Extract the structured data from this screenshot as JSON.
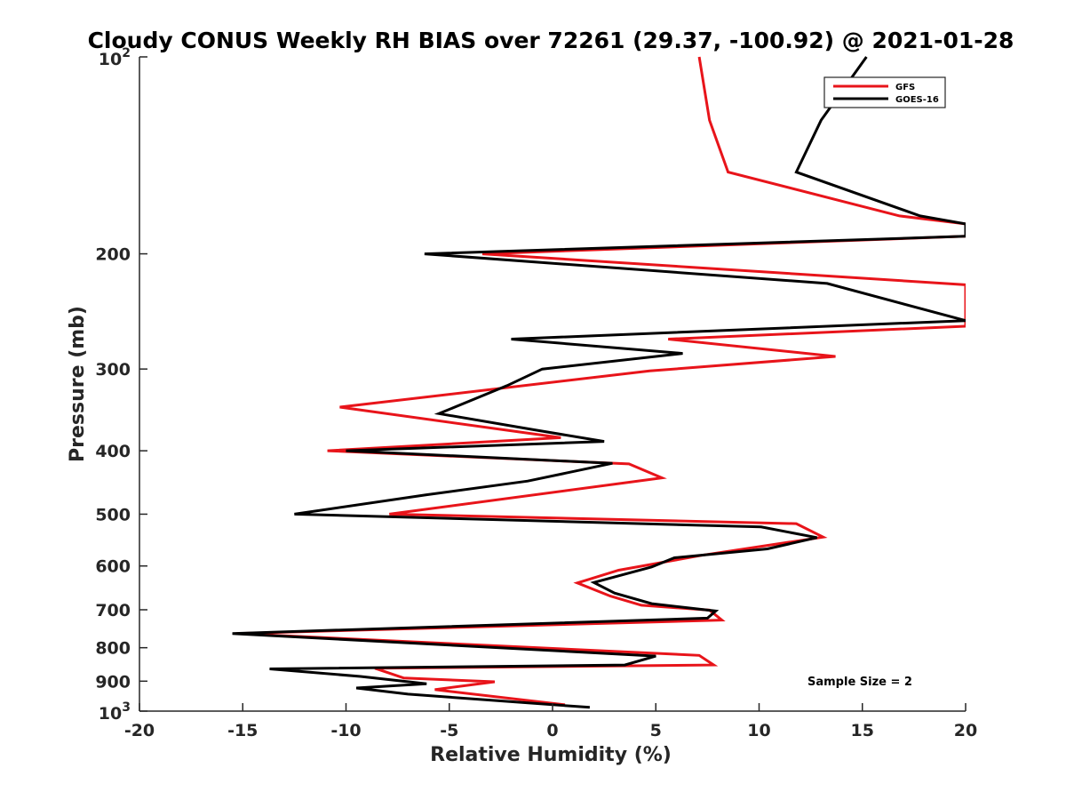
{
  "chart_data": {
    "type": "line",
    "title": "Cloudy CONUS Weekly RH BIAS over 72261 (29.37, -100.92) @ 2021-01-28",
    "xlabel": "Relative Humidity (%)",
    "ylabel": "Pressure (mb)",
    "xlim": [
      -20,
      20
    ],
    "ylim": [
      100,
      1000
    ],
    "y_scale": "log",
    "y_reversed": true,
    "grid": false,
    "legend_position": "top-right",
    "x_ticks": [
      "-20",
      "-15",
      "-10",
      "-5",
      "0",
      "5",
      "10",
      "15",
      "20"
    ],
    "y_ticks": [
      {
        "value": 100,
        "base": "10",
        "exp": "2"
      },
      {
        "value": 200,
        "label": "200"
      },
      {
        "value": 300,
        "label": "300"
      },
      {
        "value": 400,
        "label": "400"
      },
      {
        "value": 500,
        "label": "500"
      },
      {
        "value": 600,
        "label": "600"
      },
      {
        "value": 700,
        "label": "700"
      },
      {
        "value": 800,
        "label": "800"
      },
      {
        "value": 900,
        "label": "900"
      },
      {
        "value": 1000,
        "base": "10",
        "exp": "3"
      }
    ],
    "annotation": "Sample Size = 2",
    "series": [
      {
        "name": "GFS",
        "color": "#e8141a",
        "points": [
          [
            7.1,
            100
          ],
          [
            7.6,
            125
          ],
          [
            8.5,
            150
          ],
          [
            16.8,
            175
          ],
          [
            20.0,
            180
          ],
          [
            20.0,
            188
          ],
          [
            -3.4,
            200
          ],
          [
            20.0,
            223
          ],
          [
            20.0,
            258
          ],
          [
            5.6,
            270
          ],
          [
            13.7,
            287
          ],
          [
            4.7,
            302
          ],
          [
            -10.3,
            343
          ],
          [
            0.4,
            382
          ],
          [
            -10.9,
            400
          ],
          [
            3.7,
            419
          ],
          [
            5.3,
            440
          ],
          [
            -7.9,
            500
          ],
          [
            11.8,
            517
          ],
          [
            13.1,
            542
          ],
          [
            7.2,
            578
          ],
          [
            3.2,
            609
          ],
          [
            1.2,
            637
          ],
          [
            2.8,
            667
          ],
          [
            4.3,
            689
          ],
          [
            7.6,
            701
          ],
          [
            8.2,
            726
          ],
          [
            -15.3,
            761
          ],
          [
            7.1,
            822
          ],
          [
            7.8,
            850
          ],
          [
            -8.6,
            860
          ],
          [
            -7.2,
            890
          ],
          [
            -2.8,
            902
          ],
          [
            -5.7,
            927
          ],
          [
            0.6,
            978
          ]
        ]
      },
      {
        "name": "GOES-16",
        "color": "#000000",
        "points": [
          [
            15.2,
            100
          ],
          [
            13.0,
            125
          ],
          [
            11.8,
            150
          ],
          [
            17.8,
            175
          ],
          [
            20.0,
            180
          ],
          [
            20.0,
            188
          ],
          [
            -6.2,
            200
          ],
          [
            13.3,
            222
          ],
          [
            20.0,
            253
          ],
          [
            -2.0,
            270
          ],
          [
            6.3,
            284
          ],
          [
            -0.5,
            300
          ],
          [
            -2.2,
            318
          ],
          [
            -5.5,
            351
          ],
          [
            -0.8,
            372
          ],
          [
            2.5,
            387
          ],
          [
            -10.0,
            400
          ],
          [
            2.9,
            418
          ],
          [
            -1.2,
            445
          ],
          [
            -6.1,
            467
          ],
          [
            -12.5,
            500
          ],
          [
            10.1,
            523
          ],
          [
            12.8,
            543
          ],
          [
            10.4,
            565
          ],
          [
            5.9,
            583
          ],
          [
            4.8,
            602
          ],
          [
            2.0,
            636
          ],
          [
            3.0,
            660
          ],
          [
            4.8,
            685
          ],
          [
            7.9,
            703
          ],
          [
            7.5,
            721
          ],
          [
            -15.5,
            761
          ],
          [
            5.0,
            824
          ],
          [
            3.5,
            850
          ],
          [
            -13.7,
            862
          ],
          [
            -9.3,
            885
          ],
          [
            -6.1,
            908
          ],
          [
            -9.5,
            922
          ],
          [
            -7.0,
            942
          ],
          [
            1.8,
            987
          ]
        ]
      }
    ]
  }
}
